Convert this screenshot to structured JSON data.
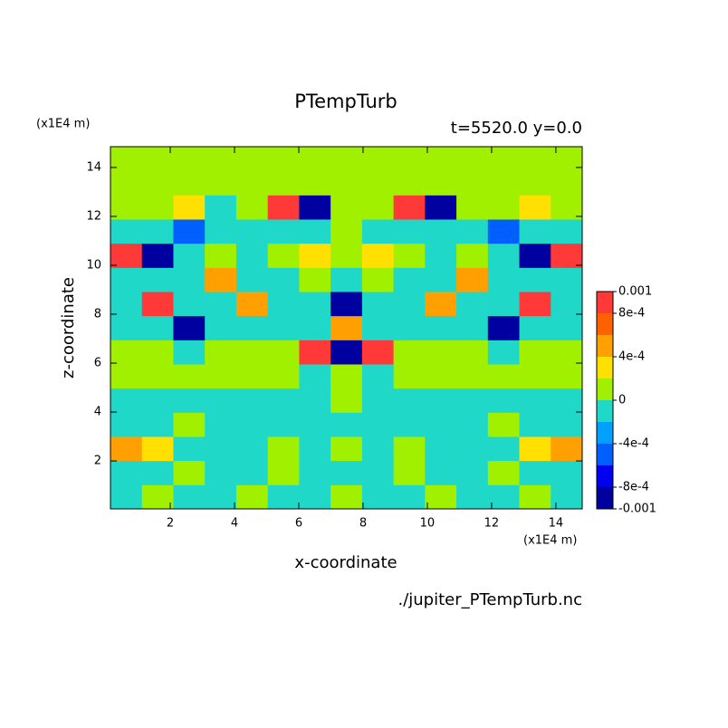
{
  "chart_data": {
    "type": "contour",
    "title": "PTempTurb",
    "subtitle": "t=5520.0 y=0.0",
    "xlabel": "x-coordinate",
    "ylabel": "z-coordinate",
    "x_units": "(x1E4 m)",
    "y_units": "(x1E4 m)",
    "source": "./jupiter_PTempTurb.nc",
    "xlim": [
      0.14,
      14.82
    ],
    "ylim": [
      0.04,
      14.85
    ],
    "xticks": [
      2,
      4,
      6,
      8,
      10,
      12,
      14
    ],
    "yticks": [
      2,
      4,
      6,
      8,
      10,
      12,
      14
    ],
    "levels": [
      -0.001,
      -0.0008,
      -0.0006,
      -0.0004,
      -0.0002,
      0,
      0.0002,
      0.0004,
      0.0006,
      0.0008,
      0.001
    ],
    "colors": [
      "#0000a0",
      "#0000f0",
      "#0060ff",
      "#00a0ff",
      "#20d8c8",
      "#a0f000",
      "#ffe000",
      "#ffa000",
      "#ff6000",
      "#ff3838"
    ],
    "cticks": [
      {
        "value": 0.001,
        "label": "0.001"
      },
      {
        "value": 0.0008,
        "label": "8e-4"
      },
      {
        "value": 0.0004,
        "label": "4e-4"
      },
      0,
      {
        "value": -0.0004,
        "label": "-4e-4"
      },
      {
        "value": -0.0008,
        "label": "-8e-4"
      },
      -0.001
    ],
    "z": [
      [
        -0.0001,
        0.0001,
        -0.0001,
        -0.0001,
        0.0001,
        -0.0001,
        -0.0001,
        0.0001,
        -0.0001,
        -0.0001,
        0.0001,
        -0.0001,
        -0.0001,
        0.0001,
        -0.0001
      ],
      [
        -0.0001,
        -0.0001,
        0.0001,
        -0.0001,
        -0.0001,
        0.0001,
        -0.0001,
        -0.0001,
        -0.0001,
        0.0001,
        -0.0001,
        -0.0001,
        0.0001,
        -0.0001,
        -0.0001
      ],
      [
        0.0005,
        0.0003,
        -0.0001,
        -0.0001,
        -0.0001,
        0.0001,
        -0.0001,
        0.0001,
        -0.0001,
        0.0001,
        -0.0001,
        -0.0001,
        -0.0001,
        0.0003,
        0.0005
      ],
      [
        -0.0001,
        -0.0001,
        0.0001,
        -0.0001,
        -0.0001,
        -0.0001,
        -0.0001,
        -0.0001,
        -0.0001,
        -0.0001,
        -0.0001,
        -0.0001,
        0.0001,
        -0.0001,
        -0.0001
      ],
      [
        -0.0001,
        -0.0001,
        -0.0001,
        -0.0001,
        -0.0001,
        -0.0001,
        -0.0001,
        0.0001,
        -0.0001,
        -0.0001,
        -0.0001,
        -0.0001,
        -0.0001,
        -0.0001,
        -0.0001
      ],
      [
        0.0001,
        0.0001,
        0.0001,
        0.0001,
        0.0001,
        0.0001,
        -0.0001,
        0.0001,
        -0.0001,
        0.0001,
        0.0001,
        0.0001,
        0.0001,
        0.0001,
        0.0001
      ],
      [
        0.0001,
        0.0001,
        -0.0001,
        0.0001,
        0.0001,
        0.0001,
        0.0009,
        -0.0009,
        0.0009,
        0.0001,
        0.0001,
        0.0001,
        -0.0001,
        0.0001,
        0.0001
      ],
      [
        -0.0001,
        -0.0001,
        -0.0009,
        -0.0001,
        -0.0001,
        -0.0001,
        -0.0001,
        0.0005,
        -0.0001,
        -0.0001,
        -0.0001,
        -0.0001,
        -0.0009,
        -0.0001,
        -0.0001
      ],
      [
        -0.0001,
        0.0009,
        -0.0001,
        -0.0001,
        0.0005,
        -0.0001,
        -0.0001,
        -0.0009,
        -0.0001,
        -0.0001,
        0.0005,
        -0.0001,
        -0.0001,
        0.0009,
        -0.0001
      ],
      [
        -0.0001,
        -0.0001,
        -0.0001,
        0.0005,
        -0.0001,
        -0.0001,
        0.0001,
        -0.0001,
        0.0001,
        -0.0001,
        -0.0001,
        0.0005,
        -0.0001,
        -0.0001,
        -0.0001
      ],
      [
        0.0009,
        -0.0009,
        -0.0001,
        0.0001,
        -0.0001,
        0.0001,
        0.0003,
        0.0001,
        0.0003,
        0.0001,
        -0.0001,
        0.0001,
        -0.0001,
        -0.0009,
        0.0009
      ],
      [
        -0.0001,
        -0.0001,
        -0.0005,
        -0.0001,
        -0.0001,
        -0.0001,
        -0.0001,
        0.0001,
        -0.0001,
        -0.0001,
        -0.0001,
        -0.0001,
        -0.0005,
        -0.0001,
        -0.0001
      ],
      [
        0.0001,
        0.0001,
        0.0003,
        -0.0001,
        0.0001,
        0.0009,
        -0.0009,
        0.0001,
        0.0001,
        0.0009,
        -0.0009,
        0.0001,
        0.0001,
        0.0003,
        0.0001
      ],
      [
        0.0001,
        0.0001,
        0.0001,
        0.0001,
        0.0001,
        0.0001,
        0.0001,
        0.0001,
        0.0001,
        0.0001,
        0.0001,
        0.0001,
        0.0001,
        0.0001,
        0.0001
      ],
      [
        0.0001,
        0.0001,
        0.0001,
        0.0001,
        0.0001,
        0.0001,
        0.0001,
        0.0001,
        0.0001,
        0.0001,
        0.0001,
        0.0001,
        0.0001,
        0.0001,
        0.0001
      ]
    ]
  }
}
